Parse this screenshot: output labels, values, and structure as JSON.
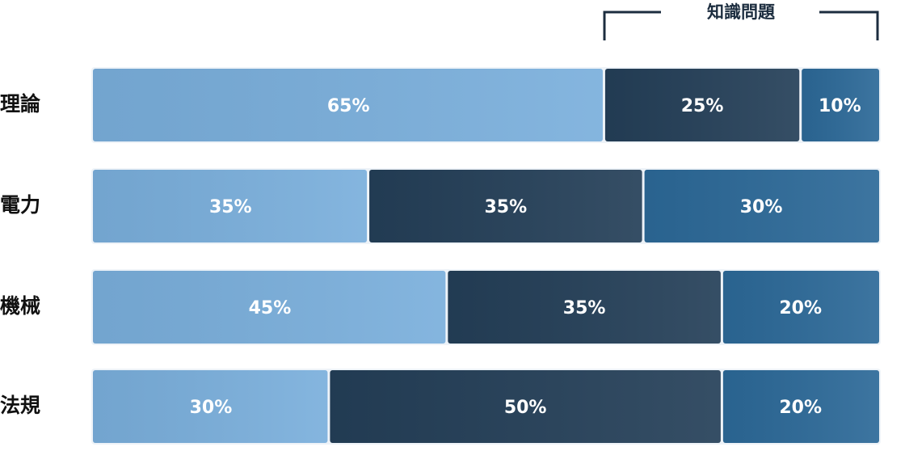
{
  "chart_data": {
    "type": "bar",
    "orientation": "horizontal",
    "stacked": true,
    "annotation": "知識問題",
    "categories": [
      "理論",
      "電力",
      "機械",
      "法規"
    ],
    "xlim": [
      0,
      100
    ],
    "series": [
      {
        "color": "#7aafdc",
        "values": [
          65,
          35,
          45,
          30
        ],
        "value_labels": [
          "65%",
          "35%",
          "45%",
          "30%"
        ]
      },
      {
        "color": "#243f58",
        "values": [
          25,
          35,
          35,
          50
        ],
        "value_labels": [
          "25%",
          "35%",
          "35%",
          "50%"
        ]
      },
      {
        "color": "#2c6998",
        "values": [
          10,
          30,
          20,
          20
        ],
        "value_labels": [
          "10%",
          "30%",
          "20%",
          "20%"
        ]
      }
    ]
  }
}
